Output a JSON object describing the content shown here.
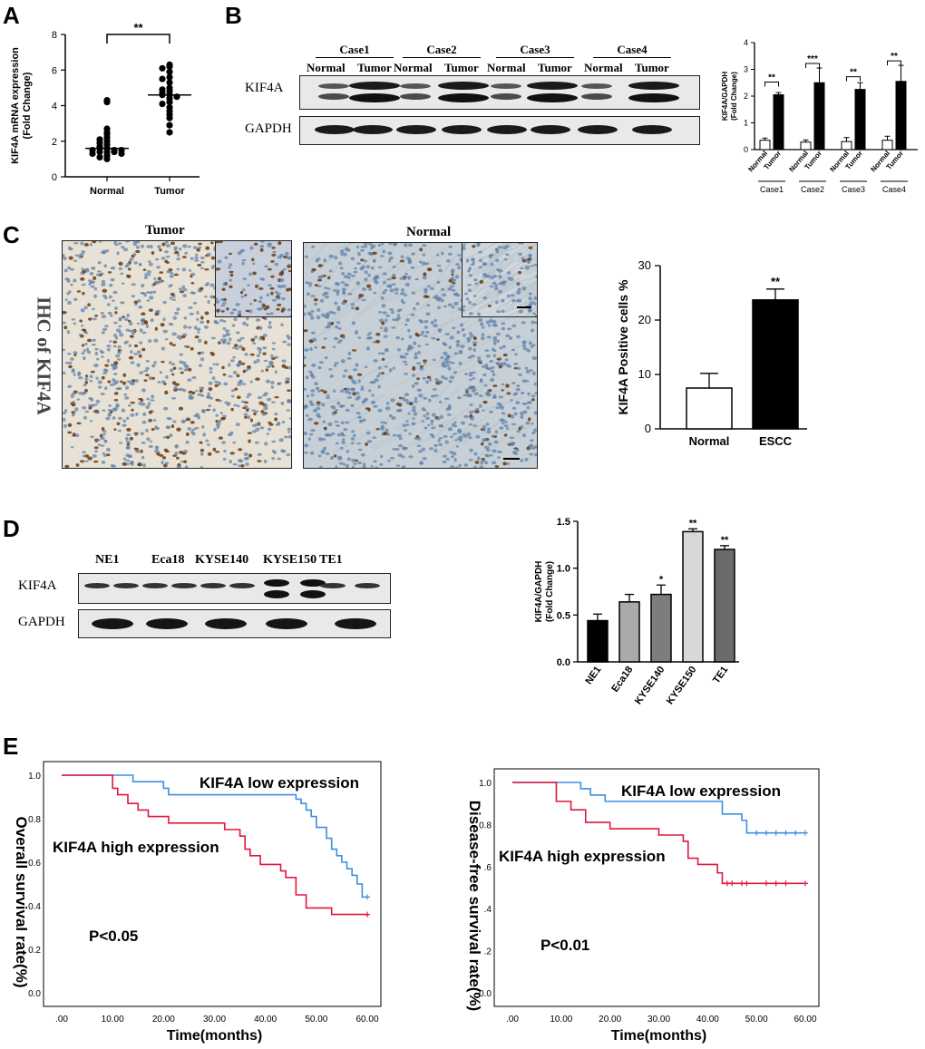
{
  "panels": {
    "A": {
      "letter": "A",
      "chart_data": {
        "type": "scatter",
        "categories": [
          "Normal",
          "Tumor"
        ],
        "ylabel": "KIF4A mRNA expression",
        "ylabel2": "(Fold Change)",
        "ylim": [
          0,
          8
        ],
        "yticks": [
          "0",
          "2",
          "4",
          "6",
          "8"
        ],
        "significance": "**",
        "points": {
          "Normal": [
            4.3,
            4.2,
            2.7,
            2.5,
            2.4,
            2.2,
            2.1,
            2.0,
            1.9,
            1.8,
            1.7,
            1.6,
            1.6,
            1.5,
            1.5,
            1.5,
            1.4,
            1.4,
            1.4,
            1.3,
            1.3,
            1.2,
            1.1,
            1.0
          ],
          "Tumor": [
            6.3,
            6.2,
            6.1,
            5.9,
            5.6,
            5.5,
            5.3,
            5.0,
            4.9,
            4.8,
            4.7,
            4.6,
            4.6,
            4.5,
            4.4,
            4.2,
            4.1,
            3.9,
            3.7,
            3.5,
            3.3,
            2.9,
            2.5
          ],
          "means": [
            1.6,
            4.6
          ]
        }
      }
    },
    "B": {
      "letter": "B",
      "blot": {
        "cases": [
          "Case1",
          "Case2",
          "Case3",
          "Case4"
        ],
        "lanes": [
          "Normal",
          "Tumor"
        ],
        "rows": [
          "KIF4A",
          "GAPDH"
        ]
      },
      "chart_data": {
        "type": "bar",
        "ylabel": "KIF4A/GAPDH",
        "ylabel2": "(Fold Change)",
        "ylim": [
          0,
          4
        ],
        "yticks": [
          "0",
          "1",
          "2",
          "3",
          "4"
        ],
        "categories": [
          "Normal",
          "Tumor",
          "Normal",
          "Tumor",
          "Normal",
          "Tumor",
          "Normal",
          "Tumor"
        ],
        "groups": [
          "Case1",
          "Case2",
          "Case3",
          "Case4"
        ],
        "values": [
          0.35,
          2.05,
          0.28,
          2.5,
          0.3,
          2.25,
          0.35,
          2.55
        ],
        "errors": [
          0.08,
          0.08,
          0.08,
          0.55,
          0.15,
          0.25,
          0.15,
          0.6
        ],
        "significance": [
          "**",
          "***",
          "**",
          "**"
        ]
      }
    },
    "C": {
      "letter": "C",
      "side_label": "IHC of KIF4A",
      "image_titles": [
        "Tumor",
        "Normal"
      ],
      "chart_data": {
        "type": "bar",
        "ylabel": "KIF4A Positive cells %",
        "ylim": [
          0,
          30
        ],
        "yticks": [
          "0",
          "10",
          "20",
          "30"
        ],
        "categories": [
          "Normal",
          "ESCC"
        ],
        "values": [
          7.5,
          23.7
        ],
        "errors": [
          2.7,
          2.0
        ],
        "significance": [
          "",
          "**"
        ]
      }
    },
    "D": {
      "letter": "D",
      "blot": {
        "lanes": [
          "NE1",
          "Eca18",
          "KYSE140",
          "KYSE150",
          "TE1"
        ],
        "rows": [
          "KIF4A",
          "GAPDH"
        ]
      },
      "chart_data": {
        "type": "bar",
        "ylabel": "KIF4A/GAPDH",
        "ylabel2": "(Fold Change)",
        "ylim": [
          0,
          1.5
        ],
        "yticks": [
          "0.0",
          "0.5",
          "1.0",
          "1.5"
        ],
        "categories": [
          "NE1",
          "Eca18",
          "KYSE140",
          "KYSE150",
          "TE1"
        ],
        "values": [
          0.44,
          0.64,
          0.72,
          1.39,
          1.2
        ],
        "errors": [
          0.07,
          0.08,
          0.1,
          0.03,
          0.04
        ],
        "significance": [
          "",
          "",
          "*",
          "**",
          "**"
        ],
        "colors": [
          "#000000",
          "#aaaaaa",
          "#7d7d7d",
          "#d8d8d8",
          "#6b6b6b"
        ]
      }
    },
    "E": {
      "letter": "E",
      "charts": [
        {
          "type": "line",
          "ylabel": "Overall survival rate(%)",
          "xlabel": "Time(months)",
          "xlim": [
            0,
            60
          ],
          "ylim": [
            0,
            1
          ],
          "xticks": [
            ".00",
            "10.00",
            "20.00",
            "30.00",
            "40.00",
            "50.00",
            "60.00"
          ],
          "yticks": [
            "0.0",
            "0.2",
            "0.4",
            "0.6",
            "0.8",
            "1.0"
          ],
          "pvalue": "P<0.05",
          "series": [
            {
              "name": "KIF4A low expression",
              "color": "#3d8ee0",
              "x": [
                0,
                9,
                14,
                20,
                21,
                45,
                46,
                47,
                48,
                49,
                50,
                52,
                53,
                54,
                55,
                56,
                57,
                58,
                59,
                60
              ],
              "y": [
                1.0,
                1.0,
                0.97,
                0.94,
                0.91,
                0.91,
                0.89,
                0.87,
                0.84,
                0.81,
                0.76,
                0.71,
                0.66,
                0.63,
                0.6,
                0.57,
                0.54,
                0.5,
                0.44,
                0.44
              ],
              "censor_x": [
                60
              ]
            },
            {
              "name": "KIF4A high expression",
              "color": "#e0173f",
              "x": [
                0,
                9,
                10,
                11,
                13,
                15,
                17,
                19,
                21,
                32,
                35,
                36,
                37,
                39,
                43,
                44,
                46,
                48,
                53,
                60
              ],
              "y": [
                1.0,
                1.0,
                0.94,
                0.91,
                0.87,
                0.84,
                0.81,
                0.81,
                0.78,
                0.75,
                0.72,
                0.66,
                0.63,
                0.59,
                0.56,
                0.53,
                0.45,
                0.39,
                0.36,
                0.36
              ],
              "censor_x": [
                60
              ]
            }
          ]
        },
        {
          "type": "line",
          "ylabel": "Disease-free survival rate(%)",
          "xlabel": "Time(months)",
          "xlim": [
            0,
            60
          ],
          "ylim": [
            0,
            1
          ],
          "xticks": [
            ".00",
            "10.00",
            "20.00",
            "30.00",
            "40.00",
            "50.00",
            "60.00"
          ],
          "yticks": [
            "0.0",
            ".2",
            ".4",
            ".6",
            "0.8",
            "1.0"
          ],
          "pvalue": "P<0.01",
          "series": [
            {
              "name": "KIF4A low expression",
              "color": "#3d8ee0",
              "x": [
                0,
                12,
                14,
                16,
                19,
                42,
                43,
                46,
                47,
                48,
                60
              ],
              "y": [
                1.0,
                1.0,
                0.97,
                0.94,
                0.91,
                0.91,
                0.85,
                0.85,
                0.82,
                0.76,
                0.76
              ],
              "censor_x": [
                50,
                52,
                54,
                56,
                58,
                60
              ]
            },
            {
              "name": "KIF4A high expression",
              "color": "#e0173f",
              "x": [
                0,
                7,
                9,
                12,
                15,
                20,
                30,
                35,
                36,
                38,
                42,
                43,
                60
              ],
              "y": [
                1.0,
                1.0,
                0.91,
                0.87,
                0.81,
                0.78,
                0.75,
                0.72,
                0.64,
                0.61,
                0.57,
                0.52,
                0.52
              ],
              "censor_x": [
                44,
                45,
                47,
                48,
                52,
                54,
                56,
                60
              ]
            }
          ]
        }
      ]
    }
  }
}
